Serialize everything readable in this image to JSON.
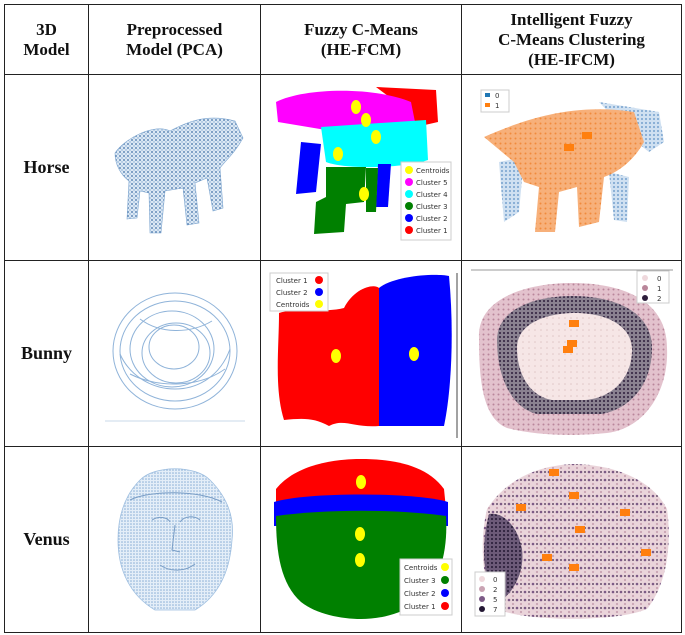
{
  "headers": {
    "col1": "3D\nModel",
    "col2": "Preprocessed\nModel (PCA)",
    "col3": "Fuzzy C-Means\n(HE-FCM)",
    "col4": "Intelligent Fuzzy\nC-Means Clustering\n(HE-IFCM)"
  },
  "rows": [
    {
      "label": "Horse"
    },
    {
      "label": "Bunny"
    },
    {
      "label": "Venus"
    }
  ],
  "legends": {
    "horse_fcm": [
      "Centroids",
      "Cluster 5",
      "Cluster 4",
      "Cluster 3",
      "Cluster 2",
      "Cluster 1"
    ],
    "horse_ifcm": [
      "0",
      "1"
    ],
    "bunny_fcm": [
      "Cluster 1",
      "Cluster 2",
      "Centroids"
    ],
    "bunny_ifcm": [
      "0",
      "1",
      "2"
    ],
    "venus_fcm": [
      "Centroids",
      "Cluster 3",
      "Cluster 2",
      "Cluster 1"
    ],
    "venus_ifcm": [
      "0",
      "2",
      "5",
      "7"
    ]
  },
  "colors": {
    "points_blue": "#5b8fc4",
    "fcm_red": "#ff0000",
    "fcm_blue": "#0000ff",
    "fcm_green": "#008000",
    "fcm_magenta": "#ff00ff",
    "fcm_cyan": "#00ffff",
    "centroid_yellow": "#ffff00",
    "ifcm_orange": "#f7a360",
    "ifcm_centroid": "#ff7f0e",
    "ifcm_pink": "#efd8dc",
    "ifcm_dark": "#2d1e3c"
  }
}
